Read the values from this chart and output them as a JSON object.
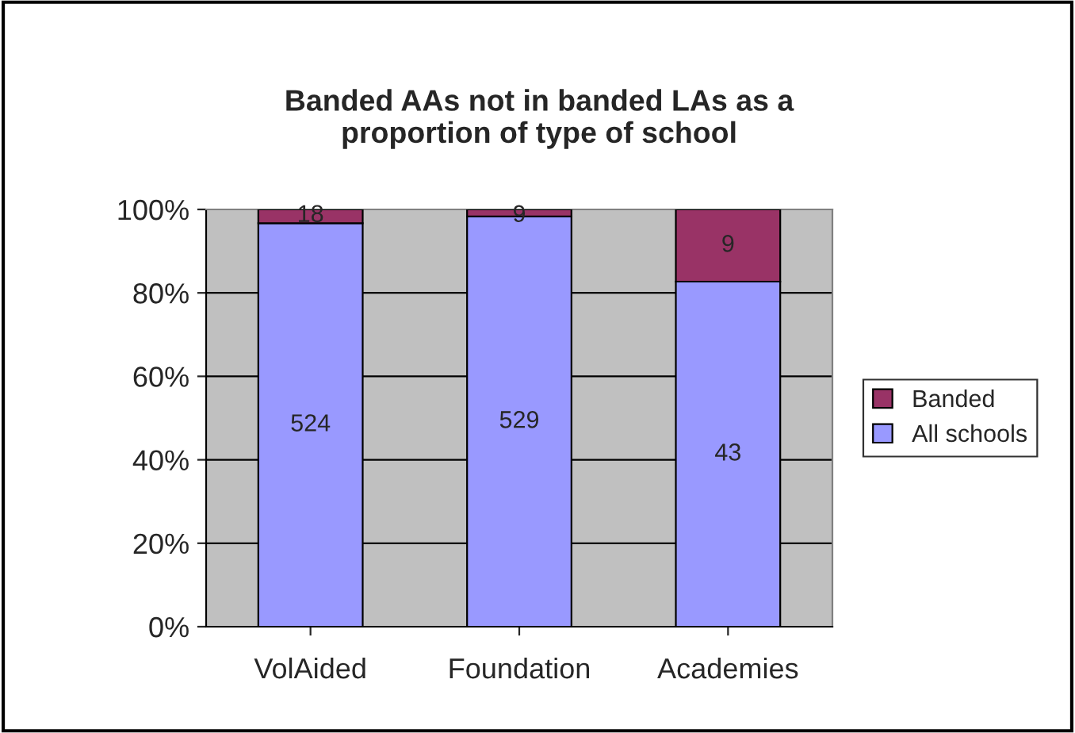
{
  "chart_data": {
    "type": "bar",
    "title": "Banded AAs not in banded LAs as a\nproportion of type of school",
    "categories": [
      "VolAided",
      "Foundation",
      "Academies"
    ],
    "stacked": true,
    "series": [
      {
        "name": "All schools",
        "color": "#9999ff",
        "values": [
          96.7,
          98.3,
          82.7
        ]
      },
      {
        "name": "Banded",
        "color": "#993366",
        "values": [
          3.3,
          1.7,
          17.3
        ]
      }
    ],
    "annotations": [
      "524",
      "529",
      "43",
      "18",
      "9",
      "9"
    ],
    "ylim": [
      0,
      100
    ],
    "yticks": [
      {
        "value": 0,
        "label": "0%"
      },
      {
        "value": 20,
        "label": "20%"
      },
      {
        "value": 40,
        "label": "40%"
      },
      {
        "value": 60,
        "label": "60%"
      },
      {
        "value": 80,
        "label": "80%"
      },
      {
        "value": 100,
        "label": "100%"
      }
    ],
    "grid": "y",
    "legend": "right"
  }
}
